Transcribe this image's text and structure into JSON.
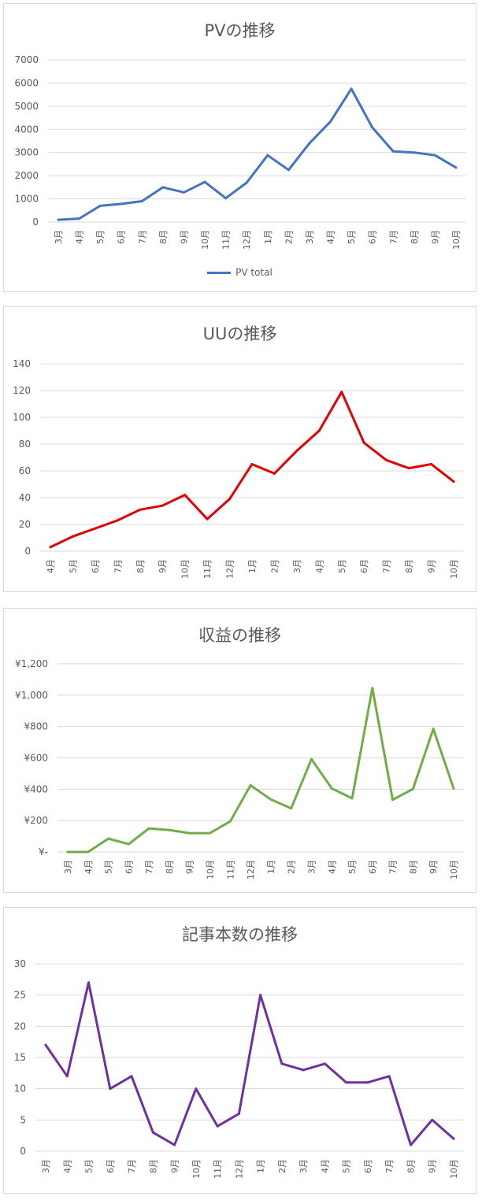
{
  "chart_data": [
    {
      "type": "line",
      "title": "PVの推移",
      "categories": [
        "3月",
        "4月",
        "5月",
        "6月",
        "7月",
        "8月",
        "9月",
        "10月",
        "11月",
        "12月",
        "1月",
        "2月",
        "3月",
        "4月",
        "5月",
        "6月",
        "7月",
        "8月",
        "9月",
        "10月"
      ],
      "series": [
        {
          "name": "PV total",
          "color": "#4472c4",
          "values": [
            100,
            150,
            700,
            780,
            900,
            1500,
            1280,
            1730,
            1030,
            1700,
            2880,
            2250,
            3400,
            4330,
            5750,
            4080,
            3050,
            3000,
            2880,
            2350
          ]
        }
      ],
      "ylim": [
        0,
        7000
      ],
      "yticks": [
        0,
        1000,
        2000,
        3000,
        4000,
        5000,
        6000,
        7000
      ],
      "ytick_labels": [
        "0",
        "1000",
        "2000",
        "3000",
        "4000",
        "5000",
        "6000",
        "7000"
      ],
      "legend": "bottom",
      "grid": true
    },
    {
      "type": "line",
      "title": "UUの推移",
      "categories": [
        "4月",
        "5月",
        "6月",
        "7月",
        "8月",
        "9月",
        "10月",
        "11月",
        "12月",
        "1月",
        "2月",
        "3月",
        "4月",
        "5月",
        "6月",
        "7月",
        "8月",
        "9月",
        "10月"
      ],
      "series": [
        {
          "color": "#e00000",
          "values": [
            3,
            11,
            17,
            23,
            31,
            34,
            42,
            24,
            39,
            65,
            58,
            75,
            90,
            119,
            81,
            68,
            62,
            65,
            52
          ]
        }
      ],
      "ylim": [
        0,
        140
      ],
      "yticks": [
        0,
        20,
        40,
        60,
        80,
        100,
        120,
        140
      ],
      "ytick_labels": [
        "0",
        "20",
        "40",
        "60",
        "80",
        "100",
        "120",
        "140"
      ],
      "grid": true
    },
    {
      "type": "line",
      "title": "収益の推移",
      "categories": [
        "3月",
        "4月",
        "5月",
        "6月",
        "7月",
        "8月",
        "9月",
        "10月",
        "11月",
        "12月",
        "1月",
        "2月",
        "3月",
        "4月",
        "5月",
        "6月",
        "7月",
        "8月",
        "9月",
        "10月"
      ],
      "series": [
        {
          "color": "#70ad47",
          "values": [
            0,
            0,
            85,
            50,
            150,
            140,
            120,
            120,
            195,
            425,
            335,
            278,
            592,
            405,
            342,
            1045,
            333,
            402,
            785,
            405
          ]
        }
      ],
      "ylim": [
        0,
        1200
      ],
      "yticks": [
        0,
        200,
        400,
        600,
        800,
        1000,
        1200
      ],
      "ytick_labels": [
        "¥-",
        "¥200",
        "¥400",
        "¥600",
        "¥800",
        "¥1,000",
        "¥1,200"
      ],
      "grid": true
    },
    {
      "type": "line",
      "title": "記事本数の推移",
      "categories": [
        "3月",
        "4月",
        "5月",
        "6月",
        "7月",
        "8月",
        "9月",
        "10月",
        "11月",
        "12月",
        "1月",
        "2月",
        "3月",
        "4月",
        "5月",
        "6月",
        "7月",
        "8月",
        "9月",
        "10月"
      ],
      "series": [
        {
          "color": "#7030a0",
          "values": [
            17,
            12,
            27,
            10,
            12,
            3,
            1,
            10,
            4,
            6,
            25,
            14,
            13,
            14,
            11,
            11,
            12,
            1,
            5,
            2
          ]
        }
      ],
      "ylim": [
        0,
        30
      ],
      "yticks": [
        0,
        5,
        10,
        15,
        20,
        25,
        30
      ],
      "ytick_labels": [
        "0",
        "5",
        "10",
        "15",
        "20",
        "25",
        "30"
      ],
      "grid": true
    }
  ]
}
